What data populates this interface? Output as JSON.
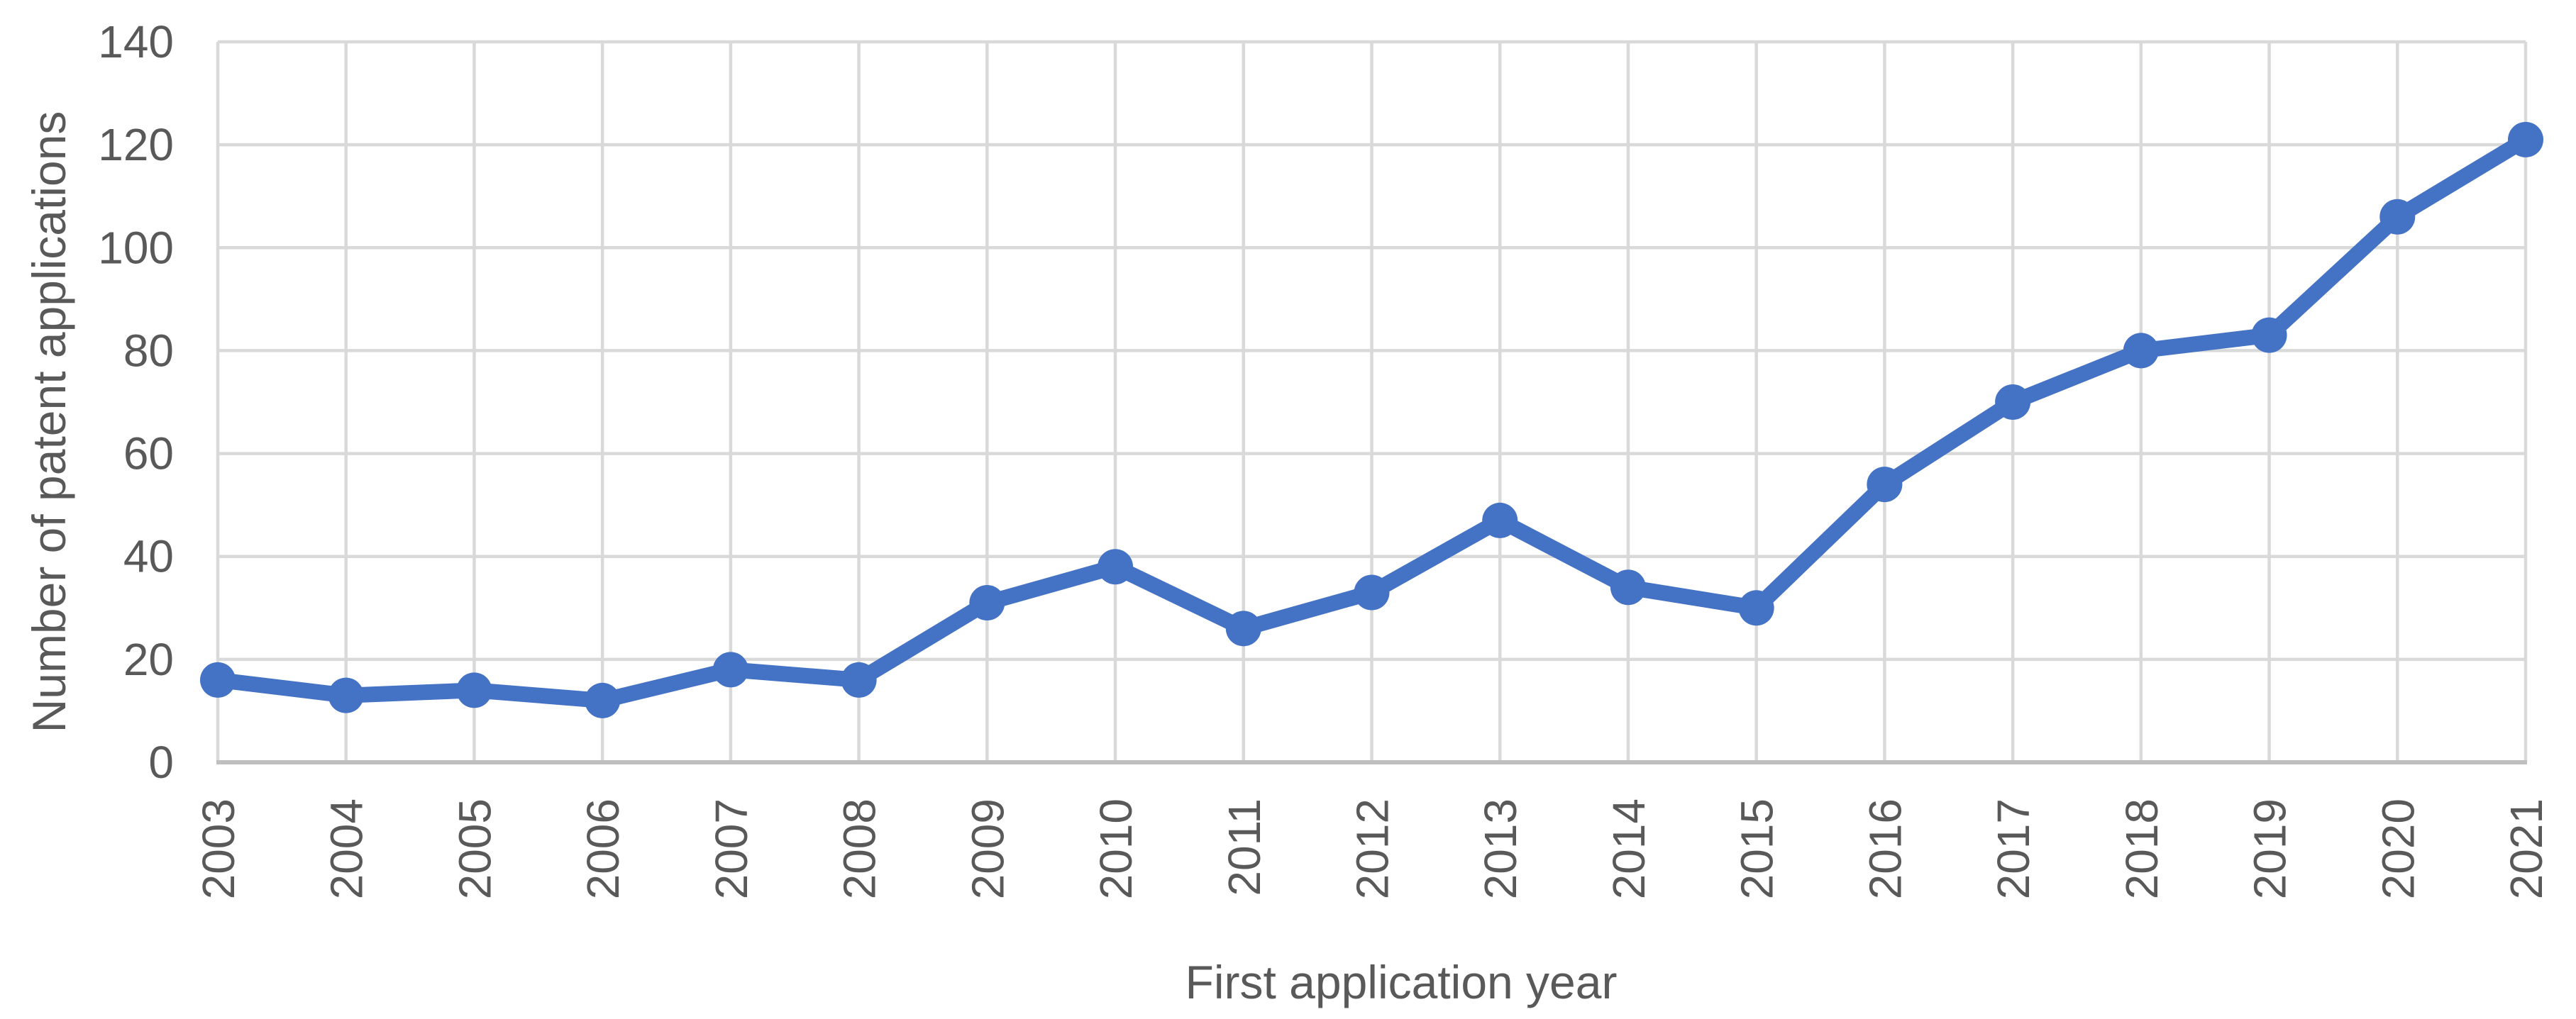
{
  "chart_data": {
    "type": "line",
    "title": "",
    "xlabel": "First application year",
    "ylabel": "Number of patent applications",
    "categories": [
      "2003",
      "2004",
      "2005",
      "2006",
      "2007",
      "2008",
      "2009",
      "2010",
      "2011",
      "2012",
      "2013",
      "2014",
      "2015",
      "2016",
      "2017",
      "2018",
      "2019",
      "2020",
      "2021"
    ],
    "series": [
      {
        "name": "Number of patent applications",
        "values": [
          16,
          13,
          14,
          12,
          18,
          16,
          31,
          38,
          26,
          33,
          47,
          34,
          30,
          54,
          70,
          80,
          83,
          106,
          121
        ]
      }
    ],
    "ylim": [
      0,
      140
    ],
    "yticks": [
      0,
      20,
      40,
      60,
      80,
      100,
      120,
      140
    ],
    "grid": "horizontal-and-vertical",
    "legend_position": "none",
    "x_tick_rotation_degrees": 90,
    "colors": {
      "line": "#4472C4",
      "marker": "#4472C4",
      "gridline": "#D9D9D9",
      "axis_line": "#BFBFBF",
      "label_text": "#595959",
      "background": "#FFFFFF"
    }
  }
}
